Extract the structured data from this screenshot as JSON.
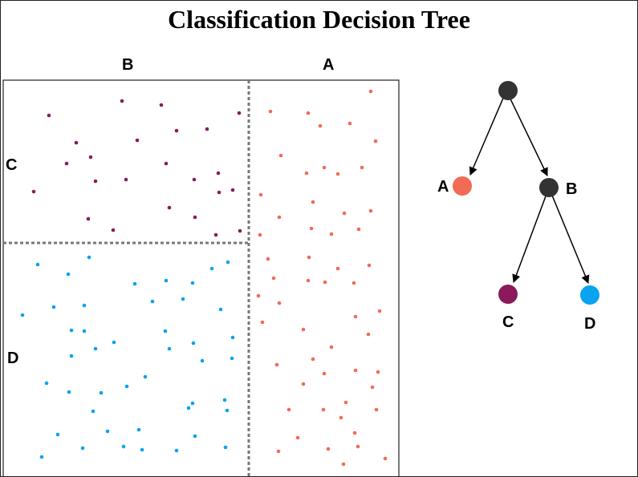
{
  "title": "Classification Decision Tree",
  "regions": {
    "top_left": "B",
    "top_right": "A",
    "left_upper": "C",
    "left_lower": "D"
  },
  "colors": {
    "A": "#f26b55",
    "B": "#333333",
    "C": "#8b1a5c",
    "D": "#0aa3f0",
    "edge": "#000000"
  },
  "tree": {
    "nodes": [
      {
        "id": "root",
        "label": "",
        "class": "split"
      },
      {
        "id": "A",
        "label": "A",
        "class": "leaf"
      },
      {
        "id": "B",
        "label": "B",
        "class": "split"
      },
      {
        "id": "C",
        "label": "C",
        "class": "leaf"
      },
      {
        "id": "D",
        "label": "D",
        "class": "leaf"
      }
    ],
    "edges": [
      [
        "root",
        "A"
      ],
      [
        "root",
        "B"
      ],
      [
        "B",
        "C"
      ],
      [
        "B",
        "D"
      ]
    ]
  }
}
